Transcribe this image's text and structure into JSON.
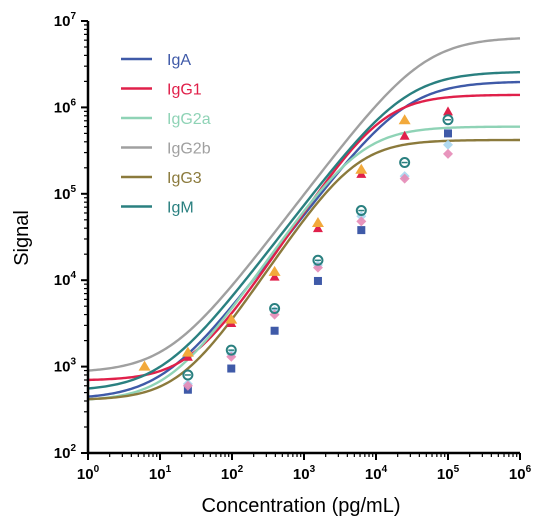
{
  "chart_data": {
    "type": "line",
    "title": "",
    "xlabel": "Concentration (pg/mL)",
    "ylabel": "Signal",
    "xscale": "log",
    "yscale": "log",
    "xlim": [
      1,
      1000000
    ],
    "ylim": [
      100,
      10000000
    ],
    "x_ticks": [
      {
        "base": "10",
        "exp": "0",
        "value": 1
      },
      {
        "base": "10",
        "exp": "1",
        "value": 10
      },
      {
        "base": "10",
        "exp": "2",
        "value": 100
      },
      {
        "base": "10",
        "exp": "3",
        "value": 1000
      },
      {
        "base": "10",
        "exp": "4",
        "value": 10000
      },
      {
        "base": "10",
        "exp": "5",
        "value": 100000
      },
      {
        "base": "10",
        "exp": "6",
        "value": 1000000
      }
    ],
    "y_ticks": [
      {
        "base": "10",
        "exp": "2",
        "value": 100
      },
      {
        "base": "10",
        "exp": "3",
        "value": 1000
      },
      {
        "base": "10",
        "exp": "4",
        "value": 10000
      },
      {
        "base": "10",
        "exp": "5",
        "value": 100000
      },
      {
        "base": "10",
        "exp": "6",
        "value": 1000000
      },
      {
        "base": "10",
        "exp": "7",
        "value": 10000000
      }
    ],
    "grid": false,
    "legend_position": "top-left",
    "series": [
      {
        "name": "IgA",
        "color": "#3f5aa8",
        "marker": "square",
        "fit": {
          "bottom": 420,
          "top": 2000000,
          "ec50": 25000,
          "hill": 1.1
        },
        "points": [
          [
            24.4,
            540
          ],
          [
            97.7,
            950
          ],
          [
            390.6,
            2600
          ],
          [
            1562.5,
            9800
          ],
          [
            6250,
            38000
          ],
          [
            100000,
            500000
          ]
        ]
      },
      {
        "name": "IgG1",
        "color": "#e0204a",
        "marker": "triangle",
        "fit": {
          "bottom": 690,
          "top": 1400000,
          "ec50": 12000,
          "hill": 1.25
        },
        "points": [
          [
            24.4,
            1300
          ],
          [
            97.7,
            3200
          ],
          [
            390.6,
            11000
          ],
          [
            1562.5,
            40000
          ],
          [
            6250,
            170000
          ],
          [
            25000,
            470000
          ],
          [
            100000,
            900000
          ]
        ]
      },
      {
        "name": "IgG2a",
        "color": "#8fd3b6",
        "marker": "diamond",
        "fit": {
          "bottom": 400,
          "top": 600000,
          "ec50": 6000,
          "hill": 1.2
        },
        "points": [
          [
            24.4,
            630
          ],
          [
            97.7,
            1400
          ],
          [
            390.6,
            4400
          ],
          [
            1562.5,
            15000
          ],
          [
            6250,
            55000
          ],
          [
            25000,
            160000
          ],
          [
            100000,
            370000
          ]
        ]
      },
      {
        "name": "IgG2b",
        "color": "#a0a0a0",
        "marker": "triangle-up",
        "fit": {
          "bottom": 850,
          "top": 6500000,
          "ec50": 45000,
          "hill": 1.1
        },
        "points": [
          [
            6.1,
            1000
          ],
          [
            24.4,
            1450
          ],
          [
            97.7,
            3500
          ],
          [
            390.6,
            12500
          ],
          [
            1562.5,
            46000
          ],
          [
            6250,
            190000
          ],
          [
            25000,
            710000
          ]
        ]
      },
      {
        "name": "IgG3",
        "color": "#8b7a3c",
        "marker": "diamond",
        "fit": {
          "bottom": 410,
          "top": 420000,
          "ec50": 5000,
          "hill": 1.25
        },
        "points": [
          [
            24.4,
            600
          ],
          [
            97.7,
            1300
          ],
          [
            390.6,
            4000
          ],
          [
            1562.5,
            14000
          ],
          [
            6250,
            48000
          ],
          [
            25000,
            150000
          ],
          [
            100000,
            290000
          ]
        ]
      },
      {
        "name": "IgM",
        "color": "#2a8080",
        "marker": "circle-open",
        "fit": {
          "bottom": 520,
          "top": 2600000,
          "ec50": 25000,
          "hill": 1.1
        },
        "points": [
          [
            24.4,
            800
          ],
          [
            97.7,
            1550
          ],
          [
            390.6,
            4700
          ],
          [
            1562.5,
            17000
          ],
          [
            6250,
            64000
          ],
          [
            25000,
            230000
          ],
          [
            100000,
            720000
          ]
        ]
      }
    ]
  }
}
